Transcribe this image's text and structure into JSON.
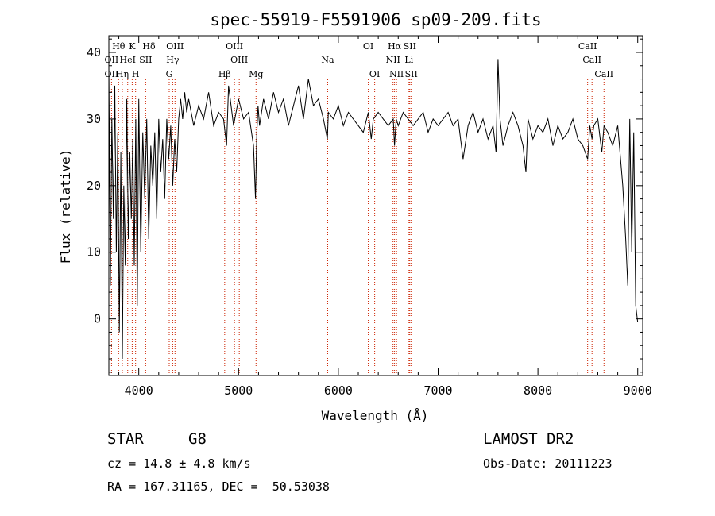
{
  "chart_data": {
    "type": "line",
    "title": "spec-55919-F5591906_sp09-209.fits",
    "xlabel": "Wavelength (Å)",
    "ylabel": "Flux (relative)",
    "xlim": [
      3700,
      9050
    ],
    "ylim": [
      -8.5,
      42.5
    ],
    "xticks": [
      4000,
      5000,
      6000,
      7000,
      8000,
      9000
    ],
    "yticks": [
      0,
      10,
      20,
      30,
      40
    ],
    "grid": false,
    "legend": "none",
    "series": [
      {
        "x": [
          3700,
          3715,
          3730,
          3745,
          3760,
          3775,
          3790,
          3805,
          3820,
          3835,
          3850,
          3865,
          3880,
          3895,
          3910,
          3925,
          3940,
          3955,
          3970,
          3985,
          4000,
          4020,
          4040,
          4060,
          4080,
          4100,
          4120,
          4140,
          4160,
          4180,
          4200,
          4220,
          4240,
          4260,
          4280,
          4300,
          4320,
          4340,
          4360,
          4380,
          4400,
          4420,
          4440,
          4460,
          4480,
          4500,
          4550,
          4600,
          4650,
          4700,
          4750,
          4800,
          4850,
          4880,
          4900,
          4950,
          5000,
          5050,
          5100,
          5150,
          5170,
          5183,
          5195,
          5210,
          5250,
          5300,
          5350,
          5400,
          5450,
          5500,
          5550,
          5600,
          5650,
          5700,
          5750,
          5800,
          5850,
          5890,
          5900,
          5950,
          6000,
          6050,
          6100,
          6150,
          6200,
          6250,
          6300,
          6330,
          6350,
          6400,
          6450,
          6500,
          6550,
          6563,
          6580,
          6600,
          6650,
          6700,
          6750,
          6800,
          6850,
          6900,
          6950,
          7000,
          7050,
          7100,
          7150,
          7200,
          7250,
          7300,
          7350,
          7400,
          7450,
          7500,
          7550,
          7580,
          7600,
          7620,
          7650,
          7700,
          7750,
          7800,
          7850,
          7880,
          7900,
          7950,
          8000,
          8050,
          8100,
          8150,
          8200,
          8250,
          8300,
          8350,
          8400,
          8450,
          8498,
          8520,
          8542,
          8560,
          8600,
          8640,
          8662,
          8700,
          8750,
          8800,
          8850,
          8880,
          8900,
          8920,
          8940,
          8960,
          8980,
          9000
        ],
        "y": [
          38,
          5,
          30,
          15,
          35,
          10,
          28,
          -2,
          25,
          -6,
          20,
          8,
          33,
          12,
          25,
          15,
          27,
          8,
          30,
          2,
          33,
          10,
          28,
          18,
          30,
          12,
          26,
          20,
          28,
          15,
          30,
          22,
          27,
          18,
          30,
          24,
          29,
          20,
          27,
          22,
          30,
          33,
          30,
          34,
          31,
          33,
          29,
          32,
          30,
          34,
          29,
          31,
          30,
          26,
          35,
          29,
          33,
          30,
          31,
          26,
          18,
          28,
          32,
          29,
          33,
          30,
          34,
          31,
          33,
          29,
          32,
          35,
          30,
          36,
          32,
          33,
          30,
          27,
          31,
          30,
          32,
          29,
          31,
          30,
          29,
          28,
          31,
          27,
          30,
          31,
          30,
          29,
          30,
          26,
          30,
          29,
          31,
          30,
          29,
          30,
          31,
          28,
          30,
          29,
          30,
          31,
          29,
          30,
          24,
          29,
          31,
          28,
          30,
          27,
          29,
          25,
          39,
          30,
          26,
          29,
          31,
          29,
          26,
          22,
          30,
          27,
          29,
          28,
          30,
          26,
          29,
          27,
          28,
          30,
          27,
          26,
          24,
          29,
          27,
          29,
          30,
          25,
          29,
          28,
          26,
          29,
          20,
          12,
          5,
          30,
          10,
          28,
          2,
          -0.5
        ]
      }
    ],
    "line_markers": [
      {
        "label": "Hθ",
        "x": 3798,
        "row": 0
      },
      {
        "label": "K",
        "x": 3934,
        "row": 0
      },
      {
        "label": "Hδ",
        "x": 4102,
        "row": 0
      },
      {
        "label": "OIII",
        "x": 4363,
        "row": 0
      },
      {
        "label": "OIII",
        "x": 4959,
        "row": 0
      },
      {
        "label": "OI",
        "x": 6300,
        "row": 0
      },
      {
        "label": "Hα",
        "x": 6563,
        "row": 0
      },
      {
        "label": "SII",
        "x": 6716,
        "row": 0
      },
      {
        "label": "CaII",
        "x": 8498,
        "row": 0
      },
      {
        "label": "OII",
        "x": 3727,
        "row": 1
      },
      {
        "label": "HeI",
        "x": 3889,
        "row": 1
      },
      {
        "label": "SII",
        "x": 4069,
        "row": 1
      },
      {
        "label": "Hγ",
        "x": 4340,
        "row": 1
      },
      {
        "label": "OIII",
        "x": 5007,
        "row": 1
      },
      {
        "label": "Na",
        "x": 5893,
        "row": 1
      },
      {
        "label": "NII",
        "x": 6548,
        "row": 1
      },
      {
        "label": "Li",
        "x": 6708,
        "row": 1
      },
      {
        "label": "CaII",
        "x": 8542,
        "row": 1
      },
      {
        "label": "OII",
        "x": 3727,
        "row": 2
      },
      {
        "label": "Hη",
        "x": 3835,
        "row": 2
      },
      {
        "label": "H",
        "x": 3968,
        "row": 2
      },
      {
        "label": "G",
        "x": 4305,
        "row": 2
      },
      {
        "label": "Hβ",
        "x": 4861,
        "row": 2
      },
      {
        "label": "Mg",
        "x": 5175,
        "row": 2
      },
      {
        "label": "OI",
        "x": 6364,
        "row": 2
      },
      {
        "label": "NII",
        "x": 6583,
        "row": 2
      },
      {
        "label": "SII",
        "x": 6731,
        "row": 2
      },
      {
        "label": "CaII",
        "x": 8662,
        "row": 2
      }
    ],
    "marker_color": "#cc2200"
  },
  "info": {
    "class": "STAR",
    "subclass": "G8",
    "cz": "cz = 14.8 ± 4.8 km/s",
    "coords": "RA = 167.31165, DEC =  50.53038",
    "survey": "LAMOST DR2",
    "obs_date": "Obs-Date: 20111223"
  }
}
